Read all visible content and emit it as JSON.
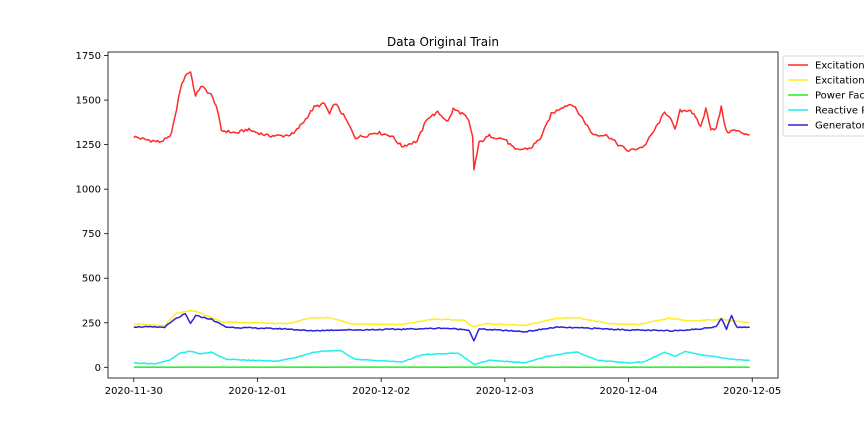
{
  "chart_data": {
    "type": "line",
    "title": "Data Original Train",
    "xlabel": "",
    "ylabel": "",
    "x_ticks": [
      "2020-11-30",
      "2020-12-01",
      "2020-12-02",
      "2020-12-03",
      "2020-12-04",
      "2020-12-05"
    ],
    "y_ticks": [
      "0",
      "250",
      "500",
      "750",
      "1000",
      "1250",
      "1500",
      "1750"
    ],
    "xlim": [
      "2020-11-29 19:00",
      "2020-12-05 05:00"
    ],
    "ylim": [
      -60,
      1770
    ],
    "grid": false,
    "legend_position": "outside-top-right",
    "series": [
      {
        "name": "Excitation",
        "color": "#ff2a2a",
        "points": [
          [
            "2020-11-30 00:00",
            1295
          ],
          [
            "2020-11-30 02:00",
            1280
          ],
          [
            "2020-11-30 05:00",
            1265
          ],
          [
            "2020-11-30 07:00",
            1290
          ],
          [
            "2020-11-30 08:00",
            1400
          ],
          [
            "2020-11-30 09:00",
            1560
          ],
          [
            "2020-11-30 10:00",
            1640
          ],
          [
            "2020-11-30 11:00",
            1660
          ],
          [
            "2020-11-30 12:00",
            1520
          ],
          [
            "2020-11-30 13:00",
            1580
          ],
          [
            "2020-11-30 15:00",
            1530
          ],
          [
            "2020-11-30 16:00",
            1470
          ],
          [
            "2020-11-30 17:00",
            1330
          ],
          [
            "2020-11-30 20:00",
            1315
          ],
          [
            "2020-11-30 22:00",
            1335
          ],
          [
            "2020-12-01 02:00",
            1300
          ],
          [
            "2020-12-01 05:00",
            1300
          ],
          [
            "2020-12-01 07:00",
            1310
          ],
          [
            "2020-12-01 09:00",
            1380
          ],
          [
            "2020-12-01 11:00",
            1460
          ],
          [
            "2020-12-01 13:00",
            1480
          ],
          [
            "2020-12-01 14:00",
            1420
          ],
          [
            "2020-12-01 15:00",
            1485
          ],
          [
            "2020-12-01 17:00",
            1400
          ],
          [
            "2020-12-01 19:00",
            1290
          ],
          [
            "2020-12-01 21:00",
            1300
          ],
          [
            "2020-12-01 23:00",
            1320
          ],
          [
            "2020-12-02 02:00",
            1300
          ],
          [
            "2020-12-02 04:00",
            1240
          ],
          [
            "2020-12-02 07:00",
            1270
          ],
          [
            "2020-12-02 09:00",
            1400
          ],
          [
            "2020-12-02 11:00",
            1430
          ],
          [
            "2020-12-02 13:00",
            1380
          ],
          [
            "2020-12-02 14:00",
            1450
          ],
          [
            "2020-12-02 16:00",
            1420
          ],
          [
            "2020-12-02 17:00",
            1380
          ],
          [
            "2020-12-02 17:45",
            1290
          ],
          [
            "2020-12-02 18:00",
            1110
          ],
          [
            "2020-12-02 19:00",
            1260
          ],
          [
            "2020-12-02 21:00",
            1300
          ],
          [
            "2020-12-03 00:00",
            1280
          ],
          [
            "2020-12-03 02:00",
            1220
          ],
          [
            "2020-12-03 05:00",
            1230
          ],
          [
            "2020-12-03 07:00",
            1290
          ],
          [
            "2020-12-03 09:00",
            1420
          ],
          [
            "2020-12-03 11:00",
            1460
          ],
          [
            "2020-12-03 13:00",
            1480
          ],
          [
            "2020-12-03 15:00",
            1400
          ],
          [
            "2020-12-03 17:00",
            1310
          ],
          [
            "2020-12-03 20:00",
            1300
          ],
          [
            "2020-12-03 22:00",
            1250
          ],
          [
            "2020-12-04 00:00",
            1215
          ],
          [
            "2020-12-04 03:00",
            1240
          ],
          [
            "2020-12-04 05:00",
            1330
          ],
          [
            "2020-12-04 07:00",
            1430
          ],
          [
            "2020-12-04 08:00",
            1410
          ],
          [
            "2020-12-04 09:00",
            1330
          ],
          [
            "2020-12-04 10:00",
            1440
          ],
          [
            "2020-12-04 12:00",
            1445
          ],
          [
            "2020-12-04 13:00",
            1400
          ],
          [
            "2020-12-04 14:00",
            1350
          ],
          [
            "2020-12-04 15:00",
            1450
          ],
          [
            "2020-12-04 16:00",
            1340
          ],
          [
            "2020-12-04 17:00",
            1340
          ],
          [
            "2020-12-04 18:00",
            1460
          ],
          [
            "2020-12-04 19:00",
            1320
          ],
          [
            "2020-12-04 20:30",
            1330
          ],
          [
            "2020-12-04 23:30",
            1305
          ]
        ]
      },
      {
        "name": "Excitation",
        "color": "#ffee22",
        "points": [
          [
            "2020-11-30 00:00",
            245
          ],
          [
            "2020-11-30 06:00",
            232
          ],
          [
            "2020-11-30 08:00",
            300
          ],
          [
            "2020-11-30 11:00",
            320
          ],
          [
            "2020-11-30 13:00",
            305
          ],
          [
            "2020-11-30 17:00",
            255
          ],
          [
            "2020-11-30 22:00",
            250
          ],
          [
            "2020-12-01 06:00",
            245
          ],
          [
            "2020-12-01 10:00",
            275
          ],
          [
            "2020-12-01 14:00",
            280
          ],
          [
            "2020-12-01 18:00",
            245
          ],
          [
            "2020-12-02 04:00",
            240
          ],
          [
            "2020-12-02 10:00",
            270
          ],
          [
            "2020-12-02 16:00",
            265
          ],
          [
            "2020-12-02 18:00",
            225
          ],
          [
            "2020-12-02 20:00",
            245
          ],
          [
            "2020-12-03 04:00",
            235
          ],
          [
            "2020-12-03 10:00",
            275
          ],
          [
            "2020-12-03 14:00",
            280
          ],
          [
            "2020-12-03 20:00",
            245
          ],
          [
            "2020-12-04 02:00",
            240
          ],
          [
            "2020-12-04 08:00",
            275
          ],
          [
            "2020-12-04 12:00",
            260
          ],
          [
            "2020-12-04 18:00",
            270
          ],
          [
            "2020-12-04 23:30",
            250
          ]
        ]
      },
      {
        "name": "Power Fac",
        "color": "#22ee22",
        "points": [
          [
            "2020-11-30 00:00",
            1
          ],
          [
            "2020-12-04 23:30",
            1
          ]
        ]
      },
      {
        "name": "Reactive P",
        "color": "#22eeee",
        "points": [
          [
            "2020-11-30 00:00",
            25
          ],
          [
            "2020-11-30 04:00",
            20
          ],
          [
            "2020-11-30 07:00",
            40
          ],
          [
            "2020-11-30 09:00",
            80
          ],
          [
            "2020-11-30 11:00",
            90
          ],
          [
            "2020-11-30 13:00",
            75
          ],
          [
            "2020-11-30 15:00",
            85
          ],
          [
            "2020-11-30 18:00",
            45
          ],
          [
            "2020-11-30 22:00",
            40
          ],
          [
            "2020-12-01 04:00",
            35
          ],
          [
            "2020-12-01 08:00",
            60
          ],
          [
            "2020-12-01 11:00",
            85
          ],
          [
            "2020-12-01 13:00",
            90
          ],
          [
            "2020-12-01 16:00",
            95
          ],
          [
            "2020-12-01 19:00",
            45
          ],
          [
            "2020-12-02 04:00",
            30
          ],
          [
            "2020-12-02 08:00",
            70
          ],
          [
            "2020-12-02 11:00",
            75
          ],
          [
            "2020-12-02 15:00",
            80
          ],
          [
            "2020-12-02 18:00",
            15
          ],
          [
            "2020-12-02 21:00",
            40
          ],
          [
            "2020-12-03 04:00",
            25
          ],
          [
            "2020-12-03 08:00",
            60
          ],
          [
            "2020-12-03 12:00",
            80
          ],
          [
            "2020-12-03 14:00",
            85
          ],
          [
            "2020-12-03 18:00",
            40
          ],
          [
            "2020-12-04 00:00",
            25
          ],
          [
            "2020-12-04 03:00",
            30
          ],
          [
            "2020-12-04 07:00",
            85
          ],
          [
            "2020-12-04 09:00",
            60
          ],
          [
            "2020-12-04 11:00",
            90
          ],
          [
            "2020-12-04 14:00",
            70
          ],
          [
            "2020-12-04 17:00",
            60
          ],
          [
            "2020-12-04 20:00",
            45
          ],
          [
            "2020-12-04 23:30",
            40
          ]
        ]
      },
      {
        "name": "Generator",
        "color": "#2a22dd",
        "points": [
          [
            "2020-11-30 00:00",
            228
          ],
          [
            "2020-11-30 06:00",
            225
          ],
          [
            "2020-11-30 08:00",
            270
          ],
          [
            "2020-11-30 10:00",
            300
          ],
          [
            "2020-11-30 11:00",
            245
          ],
          [
            "2020-11-30 12:00",
            290
          ],
          [
            "2020-11-30 15:00",
            270
          ],
          [
            "2020-11-30 18:00",
            225
          ],
          [
            "2020-12-01 00:00",
            220
          ],
          [
            "2020-12-01 06:00",
            215
          ],
          [
            "2020-12-01 10:00",
            205
          ],
          [
            "2020-12-01 16:00",
            210
          ],
          [
            "2020-12-01 20:00",
            210
          ],
          [
            "2020-12-02 06:00",
            215
          ],
          [
            "2020-12-02 12:00",
            220
          ],
          [
            "2020-12-02 17:00",
            210
          ],
          [
            "2020-12-02 18:00",
            150
          ],
          [
            "2020-12-02 19:00",
            215
          ],
          [
            "2020-12-03 04:00",
            200
          ],
          [
            "2020-12-03 10:00",
            225
          ],
          [
            "2020-12-03 16:00",
            220
          ],
          [
            "2020-12-04 00:00",
            210
          ],
          [
            "2020-12-04 08:00",
            205
          ],
          [
            "2020-12-04 14:00",
            215
          ],
          [
            "2020-12-04 17:00",
            230
          ],
          [
            "2020-12-04 18:00",
            275
          ],
          [
            "2020-12-04 19:00",
            215
          ],
          [
            "2020-12-04 20:00",
            290
          ],
          [
            "2020-12-04 21:00",
            225
          ],
          [
            "2020-12-04 23:30",
            225
          ]
        ]
      }
    ]
  }
}
